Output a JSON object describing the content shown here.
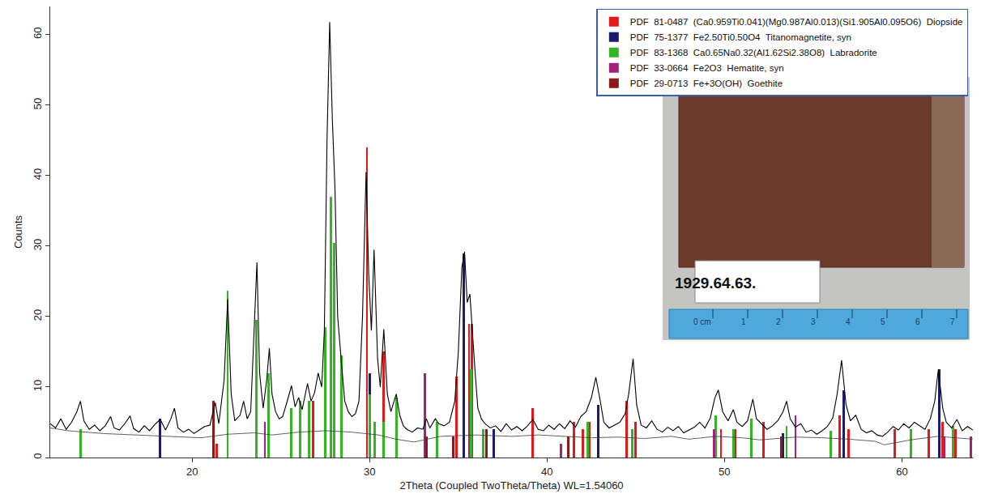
{
  "chart_data": {
    "type": "line",
    "x_label": "2Theta (Coupled TwoTheta/Theta) WL=1.54060",
    "y_label": "Counts",
    "xlim": [
      12,
      64
    ],
    "xticks": [
      20,
      30,
      40,
      50,
      60
    ],
    "ylim": [
      0,
      64
    ],
    "yticks": [
      0,
      10,
      20,
      30,
      40,
      50,
      60
    ],
    "grid": false,
    "legend": "upper right",
    "series": [
      {
        "type": "stick",
        "name": "PDF  81-0487  (Ca0.959Ti0.041)(Mg0.987Al0.013)(Si1.905Al0.095O6)  Diopside",
        "color": "#e31a1c",
        "x": [
          21.4,
          26.8,
          27.5,
          29.85,
          30.3,
          30.8,
          34.9,
          35.6,
          35.75,
          39.2,
          41.5,
          42.0,
          42.4,
          44.5,
          45.0,
          49.8,
          50.6,
          52.2,
          56.5,
          57.0,
          59.6,
          61.5,
          62.3,
          63.0
        ],
        "values": [
          2,
          8,
          14.5,
          44,
          5,
          15,
          11.5,
          19,
          19,
          7,
          5,
          4,
          5,
          8,
          5,
          4,
          4,
          5,
          6,
          4,
          4,
          4,
          5,
          4
        ]
      },
      {
        "type": "stick",
        "name": "PDF  75-1377  Fe2.50Ti0.50O4  Titanomagnetite, syn",
        "color": "#1c1c6b",
        "x": [
          18.2,
          30.0,
          35.3,
          37.0,
          42.9,
          53.3,
          56.7,
          62.1
        ],
        "values": [
          5.5,
          12,
          29,
          4,
          7.5,
          3.5,
          9.5,
          12.5
        ]
      },
      {
        "type": "stick",
        "name": "PDF  83-1368  Ca0.65Na0.32(Al1.62Si2.38O8)  Labradorite",
        "color": "#33b524",
        "x": [
          13.7,
          22.0,
          23.6,
          24.3,
          25.6,
          26.1,
          26.6,
          27.5,
          27.8,
          28.0,
          28.4,
          30.0,
          30.3,
          30.8,
          31.5,
          33.8,
          35.7,
          36.4,
          42.3,
          44.8,
          49.5,
          50.5,
          51.5,
          53.5,
          56.0,
          60.5,
          62.9
        ],
        "values": [
          4,
          23.7,
          19.5,
          12,
          7,
          8,
          8,
          18.5,
          37,
          30.5,
          14.5,
          9,
          5,
          5,
          8.5,
          5,
          12.5,
          4,
          5,
          4,
          6,
          4,
          5.5,
          4.5,
          3.8,
          4,
          4.5
        ]
      },
      {
        "type": "stick",
        "name": "PDF  33-0664  Fe2O3  Hematite, syn",
        "color": "#a3207d",
        "x": [
          24.1,
          33.1,
          35.6,
          40.8,
          49.4,
          54.0,
          62.4,
          63.9
        ],
        "values": [
          5,
          12,
          8,
          2,
          4,
          6,
          3,
          3
        ]
      },
      {
        "type": "stick",
        "name": "PDF  29-0713  Fe+3O(OH)  Goethite",
        "color": "#8b1a1a",
        "x": [
          21.2,
          33.2,
          34.7,
          36.6,
          41.2,
          53.2
        ],
        "values": [
          8,
          3,
          3,
          4,
          3,
          3
        ]
      },
      {
        "type": "line",
        "color": "#000000",
        "x": [
          12.0,
          12.3,
          12.6,
          12.9,
          13.2,
          13.5,
          13.7,
          13.9,
          14.2,
          14.5,
          14.8,
          15.1,
          15.4,
          15.6,
          15.9,
          16.2,
          16.5,
          16.7,
          17.0,
          17.3,
          17.6,
          17.9,
          18.2,
          18.5,
          18.8,
          19.0,
          19.2,
          19.5,
          19.8,
          20.1,
          20.4,
          20.7,
          21.0,
          21.3,
          21.5,
          21.8,
          22.0,
          22.2,
          22.4,
          22.7,
          22.9,
          23.1,
          23.3,
          23.5,
          23.65,
          23.8,
          24.0,
          24.2,
          24.35,
          24.5,
          24.7,
          24.9,
          25.1,
          25.3,
          25.6,
          25.8,
          26.0,
          26.2,
          26.5,
          26.7,
          26.9,
          27.1,
          27.3,
          27.45,
          27.6,
          27.75,
          27.9,
          28.05,
          28.2,
          28.4,
          28.6,
          28.8,
          29.0,
          29.2,
          29.4,
          29.6,
          29.8,
          29.95,
          30.1,
          30.25,
          30.45,
          30.6,
          30.8,
          31.0,
          31.2,
          31.5,
          31.7,
          31.9,
          32.1,
          32.4,
          32.7,
          33.0,
          33.2,
          33.4,
          33.7,
          33.9,
          34.2,
          34.5,
          34.8,
          35.0,
          35.2,
          35.35,
          35.5,
          35.65,
          35.8,
          35.95,
          36.1,
          36.3,
          36.5,
          36.8,
          37.1,
          37.4,
          37.7,
          38.0,
          38.3,
          38.6,
          38.9,
          39.2,
          39.5,
          39.8,
          40.1,
          40.4,
          40.7,
          41.0,
          41.3,
          41.6,
          41.9,
          42.2,
          42.5,
          42.75,
          43.0,
          43.2,
          43.5,
          43.8,
          44.1,
          44.4,
          44.6,
          44.85,
          45.05,
          45.3,
          45.6,
          45.9,
          46.2,
          46.5,
          46.8,
          47.1,
          47.4,
          47.7,
          48.0,
          48.3,
          48.6,
          48.9,
          49.2,
          49.45,
          49.65,
          49.9,
          50.2,
          50.5,
          50.7,
          51.0,
          51.3,
          51.6,
          51.8,
          52.1,
          52.4,
          52.7,
          53.0,
          53.3,
          53.5,
          53.7,
          54.0,
          54.3,
          54.6,
          54.9,
          55.2,
          55.5,
          55.8,
          56.1,
          56.35,
          56.6,
          56.85,
          57.1,
          57.4,
          57.7,
          58.0,
          58.3,
          58.6,
          58.9,
          59.2,
          59.5,
          59.8,
          60.1,
          60.4,
          60.7,
          61.0,
          61.3,
          61.6,
          61.85,
          62.05,
          62.3,
          62.5,
          62.8,
          63.1,
          63.4,
          63.7,
          64.0
        ],
        "values": [
          4.8,
          4.2,
          5.5,
          4.0,
          5.0,
          6.5,
          8.0,
          5.2,
          4.0,
          4.6,
          3.8,
          4.5,
          5.8,
          4.2,
          3.9,
          4.8,
          5.9,
          4.1,
          3.6,
          4.5,
          3.8,
          4.7,
          5.4,
          3.9,
          5.5,
          7.0,
          4.2,
          3.6,
          4.0,
          3.4,
          3.9,
          4.4,
          4.6,
          7.8,
          4.8,
          11,
          22.5,
          9,
          5.2,
          6.0,
          8.0,
          5.5,
          6.5,
          18,
          27.7,
          12,
          7,
          11,
          15.5,
          9,
          6.5,
          5.5,
          5.8,
          7.5,
          10.2,
          7.2,
          8.5,
          6.8,
          10.5,
          8.0,
          9.2,
          12,
          10,
          18,
          45,
          61.8,
          48,
          38,
          20,
          13.8,
          8,
          6.5,
          5.8,
          6.2,
          8,
          20,
          40.5,
          26,
          18,
          29.5,
          14,
          10,
          18.2,
          9,
          6.5,
          9,
          6,
          4.5,
          4.0,
          3.6,
          4.2,
          4.0,
          5.5,
          4.2,
          5.5,
          4.8,
          4.5,
          5.0,
          8,
          15,
          27,
          29.2,
          22,
          23.2,
          17,
          12,
          7,
          5.5,
          4.8,
          4.2,
          4.5,
          3.7,
          4.8,
          3.9,
          4.4,
          3.8,
          4.5,
          5.4,
          4.0,
          3.8,
          4.6,
          4.0,
          4.8,
          4.1,
          5.2,
          4.3,
          5.8,
          6.5,
          8.5,
          11.4,
          8.0,
          5.0,
          4.2,
          4.6,
          5.0,
          6.2,
          9,
          14,
          7.5,
          4.6,
          4.2,
          5.2,
          4.0,
          3.6,
          4.3,
          3.8,
          4.4,
          3.5,
          3.9,
          4.3,
          5.0,
          4.2,
          5.6,
          8.4,
          9.6,
          6.5,
          5.2,
          6.8,
          5.0,
          4.4,
          5.2,
          8.3,
          5.5,
          4.7,
          4.0,
          4.5,
          5.2,
          6.5,
          8.0,
          5.5,
          4.3,
          4.8,
          3.6,
          3.9,
          3.3,
          3.8,
          4.4,
          5.6,
          9,
          13.8,
          7.5,
          5.2,
          6.0,
          4.0,
          3.5,
          3.8,
          3.2,
          3.0,
          3.6,
          4.4,
          3.9,
          4.8,
          4.2,
          5.0,
          4.5,
          4.0,
          5.5,
          8,
          12.5,
          7,
          5.0,
          4.2,
          5.4,
          3.8,
          4.4,
          3.9
        ]
      },
      {
        "type": "line",
        "color": "#3a3a3a",
        "x": [
          12,
          13,
          15,
          17,
          19,
          20.5,
          22,
          23.5,
          24.5,
          26,
          27.5,
          29,
          30.5,
          31.5,
          32.5,
          34,
          36,
          38,
          39.5,
          41,
          42.5,
          44,
          45.5,
          47,
          48,
          49.5,
          51,
          52,
          54,
          55.5,
          57,
          58.5,
          59,
          60.5,
          62,
          63,
          64
        ],
        "values": [
          4.2,
          3.8,
          3.4,
          3.2,
          3.0,
          2.8,
          3.3,
          3.5,
          3.2,
          3.6,
          3.8,
          3.6,
          3.2,
          2.6,
          2.2,
          3.0,
          3.2,
          3.0,
          3.2,
          3.0,
          2.8,
          2.9,
          2.7,
          3.0,
          2.6,
          3.0,
          2.8,
          2.5,
          2.9,
          2.8,
          2.6,
          2.3,
          1.8,
          2.5,
          3.0,
          2.8,
          2.6
        ]
      }
    ]
  },
  "inset": {
    "label": "1929.64.63.",
    "ruler_labels": [
      "0 cm",
      "1",
      "2",
      "3",
      "4",
      "5",
      "6",
      "7"
    ]
  }
}
